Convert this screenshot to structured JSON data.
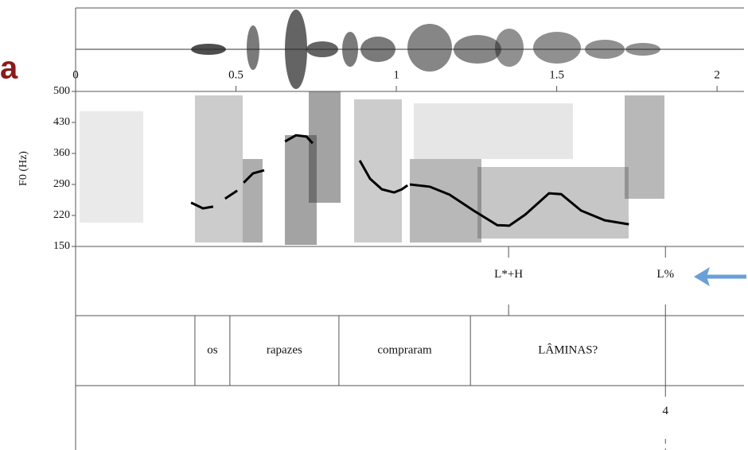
{
  "chart_data": {
    "type": "line",
    "fragment": "a",
    "ylabel": "F0 (Hz)",
    "xlim": [
      0,
      2.084
    ],
    "xticks": [
      0,
      0.5,
      1,
      1.5,
      2
    ],
    "ylim": [
      150,
      500
    ],
    "yticks": [
      150,
      220,
      290,
      360,
      430,
      500
    ],
    "color": "#000000",
    "x": [
      0.36,
      0.397,
      0.429,
      null,
      0.466,
      0.504,
      null,
      0.524,
      0.553,
      0.588,
      null,
      0.653,
      0.687,
      0.72,
      0.739,
      null,
      0.886,
      0.918,
      0.955,
      0.993,
      1.017,
      1.035,
      null,
      1.042,
      1.104,
      1.166,
      1.241,
      1.315,
      1.352,
      1.402,
      1.476,
      1.514,
      1.576,
      1.65,
      1.725
    ],
    "values": [
      249,
      236,
      240,
      null,
      258,
      276,
      null,
      294,
      315,
      322,
      null,
      387,
      401,
      398,
      383,
      null,
      344,
      303,
      279,
      272,
      279,
      288,
      null,
      290,
      285,
      267,
      231,
      198,
      197,
      222,
      270,
      268,
      231,
      209,
      200
    ],
    "tiers": [
      {
        "points": [
          {
            "time": 1.35,
            "label": "L*+H"
          },
          {
            "time": 1.839,
            "label": "L%"
          }
        ]
      },
      {
        "boundaries": [
          0.372,
          0.481,
          0.821,
          1.231,
          1.839
        ],
        "labels": [
          "os",
          "rapazes",
          "compraram",
          "LÂMINAS?"
        ]
      },
      {
        "points": [
          {
            "time": 1.839,
            "label": "4"
          }
        ]
      }
    ]
  }
}
